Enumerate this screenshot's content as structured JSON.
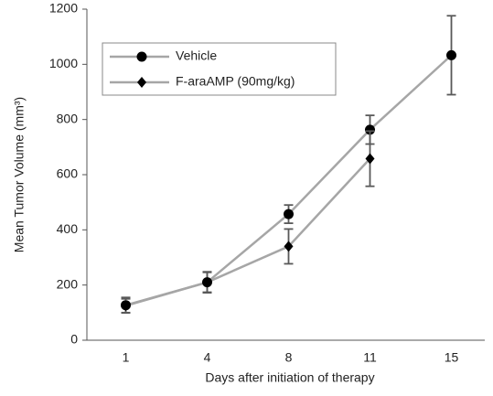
{
  "chart_data": {
    "type": "line",
    "x_label": "Days after initiation of therapy",
    "y_label": "Mean Tumor Volume (mm³)",
    "categories": [
      "1",
      "4",
      "8",
      "11",
      "15"
    ],
    "series": [
      {
        "name": "Vehicle",
        "color": "#a6a6a6",
        "marker": "circle",
        "values": [
          127,
          210,
          457,
          763,
          1033
        ],
        "errors": [
          28,
          36,
          33,
          52,
          143
        ]
      },
      {
        "name": "F-araAMP (90mg/kg)",
        "color": "#a6a6a6",
        "marker": "diamond",
        "values": [
          125,
          210,
          340,
          658,
          null
        ],
        "errors": [
          25,
          38,
          63,
          100,
          null
        ]
      }
    ],
    "ylim": [
      0,
      1200
    ],
    "yticks": [
      0,
      200,
      400,
      600,
      800,
      1000,
      1200
    ],
    "legend": "top-left"
  }
}
